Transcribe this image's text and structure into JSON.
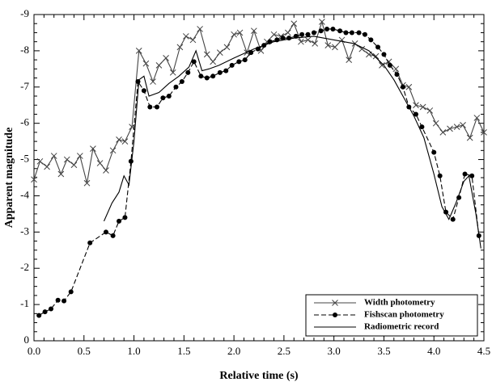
{
  "chart_data": {
    "type": "line",
    "xlabel": "Relative time (s)",
    "ylabel": "Apparent magnitude",
    "xlim": [
      0,
      4.5
    ],
    "ylim": [
      0,
      -9
    ],
    "xticks": [
      {
        "value": 0,
        "label": "0.0"
      },
      0.5,
      {
        "value": 1,
        "label": "1.0"
      },
      1.5,
      {
        "value": 2,
        "label": "2.0"
      },
      2.5,
      {
        "value": 3,
        "label": "3.0"
      },
      3.5,
      {
        "value": 4,
        "label": "4.0"
      },
      4.5
    ],
    "yticks": [
      0,
      -1,
      -2,
      -3,
      -4,
      -5,
      -6,
      -7,
      -8,
      -9
    ],
    "legend": "lower right",
    "series": [
      {
        "name": "Width photometry",
        "color": "#444444",
        "marker": "x",
        "linestyle": "solid",
        "x": [
          0.0,
          0.06,
          0.13,
          0.2,
          0.27,
          0.33,
          0.4,
          0.46,
          0.53,
          0.59,
          0.66,
          0.72,
          0.79,
          0.85,
          0.91,
          0.98,
          1.05,
          1.12,
          1.19,
          1.25,
          1.32,
          1.39,
          1.46,
          1.52,
          1.59,
          1.66,
          1.73,
          1.79,
          1.86,
          1.93,
          2.0,
          2.06,
          2.13,
          2.2,
          2.27,
          2.33,
          2.4,
          2.47,
          2.54,
          2.6,
          2.67,
          2.74,
          2.81,
          2.88,
          2.94,
          3.01,
          3.08,
          3.15,
          3.21,
          3.28,
          3.35,
          3.42,
          3.48,
          3.55,
          3.62,
          3.69,
          3.75,
          3.82,
          3.89,
          3.96,
          4.02,
          4.09,
          4.16,
          4.23,
          4.29,
          4.36,
          4.43,
          4.5
        ],
        "values": [
          -4.45,
          -4.95,
          -4.8,
          -5.1,
          -4.6,
          -5.0,
          -4.85,
          -5.1,
          -4.35,
          -5.3,
          -4.9,
          -4.7,
          -5.25,
          -5.55,
          -5.5,
          -5.9,
          -8.0,
          -7.65,
          -7.15,
          -7.6,
          -7.8,
          -7.4,
          -8.1,
          -8.4,
          -8.3,
          -8.6,
          -7.9,
          -7.7,
          -7.95,
          -8.1,
          -8.45,
          -8.5,
          -7.95,
          -8.55,
          -8.0,
          -8.25,
          -8.45,
          -8.4,
          -8.5,
          -8.75,
          -8.25,
          -8.3,
          -8.2,
          -8.8,
          -8.15,
          -8.1,
          -8.3,
          -7.75,
          -8.2,
          -8.05,
          -7.9,
          -7.85,
          -7.6,
          -7.7,
          -7.5,
          -7.05,
          -7.0,
          -6.5,
          -6.45,
          -6.35,
          -6.0,
          -5.75,
          -5.85,
          -5.9,
          -5.95,
          -5.6,
          -6.15,
          -5.75
        ]
      },
      {
        "name": "Fishscan photometry",
        "color": "#000000",
        "marker": "dot",
        "linestyle": "dashed",
        "x": [
          0.05,
          0.11,
          0.17,
          0.24,
          0.3,
          0.37,
          0.56,
          0.72,
          0.79,
          0.85,
          0.91,
          0.97,
          1.04,
          1.1,
          1.16,
          1.23,
          1.29,
          1.35,
          1.42,
          1.48,
          1.54,
          1.6,
          1.67,
          1.73,
          1.79,
          1.86,
          1.92,
          1.98,
          2.05,
          2.11,
          2.17,
          2.24,
          2.3,
          2.36,
          2.43,
          2.49,
          2.55,
          2.62,
          2.68,
          2.74,
          2.8,
          2.87,
          2.93,
          2.99,
          3.06,
          3.12,
          3.18,
          3.25,
          3.31,
          3.37,
          3.44,
          3.5,
          3.56,
          3.63,
          3.69,
          3.75,
          3.82,
          3.88,
          4.0,
          4.06,
          4.12,
          4.19,
          4.25,
          4.31,
          4.38,
          4.45
        ],
        "values": [
          -0.7,
          -0.8,
          -0.88,
          -1.12,
          -1.1,
          -1.35,
          -2.7,
          -3.0,
          -2.9,
          -3.3,
          -3.4,
          -4.95,
          -7.15,
          -6.9,
          -6.45,
          -6.45,
          -6.7,
          -6.75,
          -7.0,
          -7.15,
          -7.4,
          -7.7,
          -7.3,
          -7.25,
          -7.3,
          -7.4,
          -7.45,
          -7.6,
          -7.7,
          -7.75,
          -7.95,
          -8.05,
          -8.15,
          -8.25,
          -8.3,
          -8.35,
          -8.35,
          -8.4,
          -8.45,
          -8.45,
          -8.5,
          -8.55,
          -8.6,
          -8.6,
          -8.55,
          -8.5,
          -8.5,
          -8.5,
          -8.45,
          -8.3,
          -8.1,
          -7.9,
          -7.6,
          -7.35,
          -7.0,
          -6.45,
          -6.25,
          -5.9,
          -5.2,
          -4.55,
          -3.55,
          -3.35,
          -3.95,
          -4.6,
          -4.55,
          -2.9
        ]
      },
      {
        "name": "Radiometric record",
        "color": "#000000",
        "marker": "none",
        "linestyle": "solid",
        "x": [
          0.7,
          0.78,
          0.85,
          0.9,
          0.95,
          1.0,
          1.05,
          1.1,
          1.15,
          1.25,
          1.35,
          1.45,
          1.55,
          1.62,
          1.68,
          1.75,
          1.85,
          2.0,
          2.2,
          2.4,
          2.6,
          2.8,
          3.0,
          3.2,
          3.35,
          3.5,
          3.6,
          3.7,
          3.8,
          3.9,
          4.0,
          4.08,
          4.15,
          4.22,
          4.3,
          4.35,
          4.42,
          4.47
        ],
        "values": [
          -3.3,
          -3.8,
          -4.1,
          -4.55,
          -4.3,
          -5.5,
          -7.2,
          -7.3,
          -6.75,
          -6.85,
          -7.1,
          -7.3,
          -7.55,
          -8.0,
          -7.45,
          -7.5,
          -7.6,
          -7.8,
          -8.05,
          -8.25,
          -8.35,
          -8.4,
          -8.3,
          -8.2,
          -8.0,
          -7.6,
          -7.2,
          -6.7,
          -6.2,
          -5.6,
          -4.6,
          -3.7,
          -3.35,
          -3.8,
          -4.4,
          -4.55,
          -3.5,
          -2.55
        ]
      }
    ]
  }
}
